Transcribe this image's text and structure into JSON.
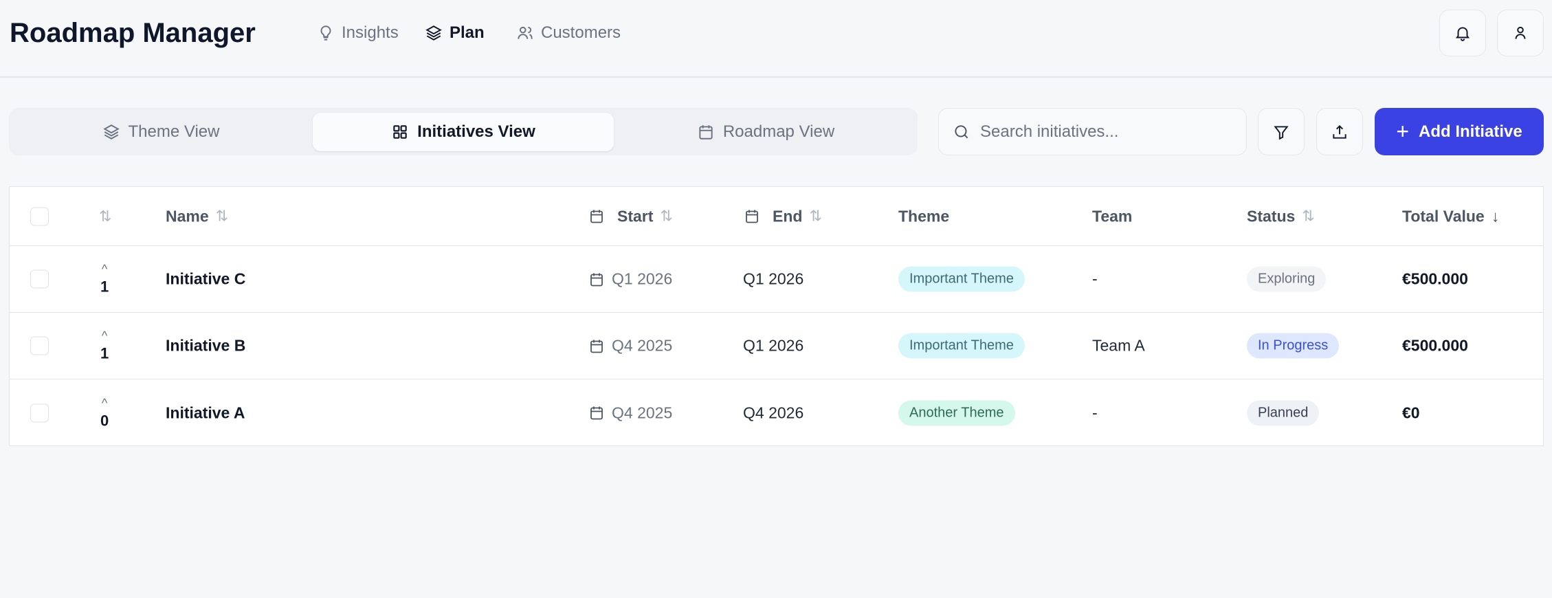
{
  "app": {
    "title": "Roadmap Manager"
  },
  "nav": [
    {
      "label": "Insights",
      "icon": "lightbulb-icon"
    },
    {
      "label": "Plan",
      "icon": "layers-icon",
      "active": true
    },
    {
      "label": "Customers",
      "icon": "users-icon"
    }
  ],
  "header_actions": {
    "notifications_icon": "bell-icon",
    "profile_icon": "user-icon"
  },
  "view_tabs": [
    {
      "label": "Theme View",
      "icon": "layers-icon"
    },
    {
      "label": "Initiatives View",
      "icon": "grid-icon",
      "active": true
    },
    {
      "label": "Roadmap View",
      "icon": "calendar-icon"
    }
  ],
  "toolbar": {
    "search_placeholder": "Search initiatives...",
    "search_value": "",
    "filter_icon": "filter-icon",
    "export_icon": "upload-icon",
    "add_label": "Add Initiative"
  },
  "colors": {
    "accent": "#3b42e3",
    "theme_important_bg": "#d5f7fb",
    "theme_important_text": "#3d6b75",
    "theme_another_bg": "#d4f8ec",
    "theme_another_text": "#2e6b55",
    "status_exploring_bg": "#f3f4f6",
    "status_inprogress_bg": "#dde7fd",
    "status_inprogress_text": "#3b4fd8",
    "status_planned_bg": "#eef1f6"
  },
  "table": {
    "columns": {
      "name": "Name",
      "start": "Start",
      "end": "End",
      "theme": "Theme",
      "team": "Team",
      "status": "Status",
      "total": "Total Value"
    },
    "rows": [
      {
        "votes": "1",
        "name": "Initiative C",
        "start": "Q1 2026",
        "end": "Q1 2026",
        "theme": "Important Theme",
        "team": "-",
        "status": "Exploring",
        "total": "€500.000"
      },
      {
        "votes": "1",
        "name": "Initiative B",
        "start": "Q4 2025",
        "end": "Q1 2026",
        "theme": "Important Theme",
        "team": "Team A",
        "status": "In Progress",
        "total": "€500.000"
      },
      {
        "votes": "0",
        "name": "Initiative A",
        "start": "Q4 2025",
        "end": "Q4 2026",
        "theme": "Another Theme",
        "team": "-",
        "status": "Planned",
        "total": "€0"
      }
    ]
  }
}
